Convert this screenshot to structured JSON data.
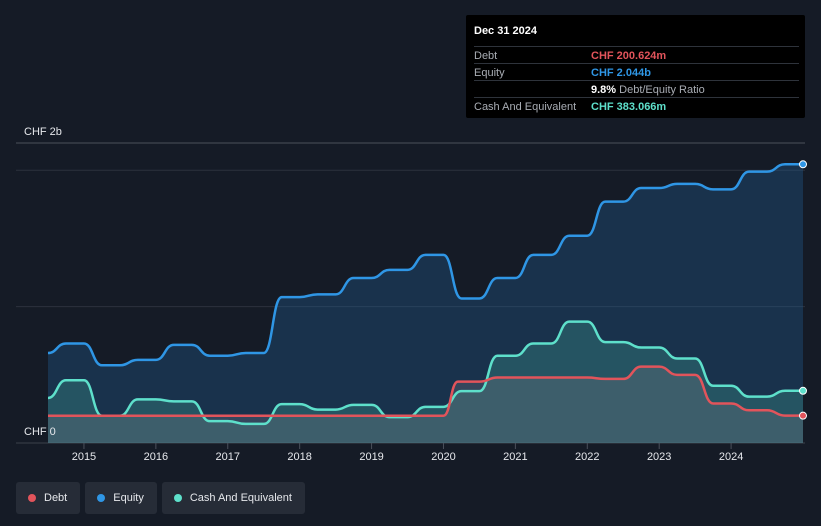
{
  "tooltip": {
    "date": "Dec 31 2024",
    "debt_label": "Debt",
    "debt_value": "CHF 200.624m",
    "equity_label": "Equity",
    "equity_value": "CHF 2.044b",
    "ratio_value": "9.8%",
    "ratio_label": "Debt/Equity Ratio",
    "cash_label": "Cash And Equivalent",
    "cash_value": "CHF 383.066m"
  },
  "legend": [
    {
      "name": "Debt",
      "color": "#e2545b"
    },
    {
      "name": "Equity",
      "color": "#2f96e5"
    },
    {
      "name": "Cash And Equivalent",
      "color": "#5ee0cb"
    }
  ],
  "colors": {
    "debt": "#e2545b",
    "equity": "#2f96e5",
    "cash": "#5ee0cb",
    "background": "#151b26"
  },
  "chart_data": {
    "type": "area",
    "title": "",
    "ylabel_top": "CHF 2b",
    "ylabel_bottom": "CHF 0",
    "y_unit": "CHF millions",
    "ylim": [
      0,
      2200
    ],
    "xlim": [
      2014.5,
      2025.0
    ],
    "x_ticks": [
      "2015",
      "2016",
      "2017",
      "2018",
      "2019",
      "2020",
      "2021",
      "2022",
      "2023",
      "2024"
    ],
    "series": [
      {
        "name": "Equity",
        "points": [
          [
            2014.5,
            660
          ],
          [
            2014.75,
            730
          ],
          [
            2015.0,
            730
          ],
          [
            2015.25,
            570
          ],
          [
            2015.5,
            570
          ],
          [
            2015.75,
            610
          ],
          [
            2016.0,
            610
          ],
          [
            2016.25,
            720
          ],
          [
            2016.5,
            720
          ],
          [
            2016.75,
            640
          ],
          [
            2017.0,
            640
          ],
          [
            2017.25,
            660
          ],
          [
            2017.5,
            660
          ],
          [
            2017.75,
            1070
          ],
          [
            2018.0,
            1070
          ],
          [
            2018.25,
            1090
          ],
          [
            2018.5,
            1090
          ],
          [
            2018.75,
            1210
          ],
          [
            2019.0,
            1210
          ],
          [
            2019.25,
            1270
          ],
          [
            2019.5,
            1270
          ],
          [
            2019.75,
            1380
          ],
          [
            2020.0,
            1380
          ],
          [
            2020.25,
            1060
          ],
          [
            2020.5,
            1060
          ],
          [
            2020.75,
            1210
          ],
          [
            2021.0,
            1210
          ],
          [
            2021.25,
            1380
          ],
          [
            2021.5,
            1380
          ],
          [
            2021.75,
            1520
          ],
          [
            2022.0,
            1520
          ],
          [
            2022.25,
            1770
          ],
          [
            2022.5,
            1770
          ],
          [
            2022.75,
            1870
          ],
          [
            2023.0,
            1870
          ],
          [
            2023.25,
            1900
          ],
          [
            2023.5,
            1900
          ],
          [
            2023.75,
            1860
          ],
          [
            2024.0,
            1860
          ],
          [
            2024.25,
            1990
          ],
          [
            2024.5,
            1990
          ],
          [
            2024.75,
            2044
          ],
          [
            2025.0,
            2044
          ]
        ]
      },
      {
        "name": "Cash And Equivalent",
        "points": [
          [
            2014.5,
            330
          ],
          [
            2014.75,
            460
          ],
          [
            2015.0,
            460
          ],
          [
            2015.25,
            200
          ],
          [
            2015.5,
            200
          ],
          [
            2015.75,
            320
          ],
          [
            2016.0,
            320
          ],
          [
            2016.25,
            305
          ],
          [
            2016.5,
            305
          ],
          [
            2016.75,
            160
          ],
          [
            2017.0,
            160
          ],
          [
            2017.25,
            140
          ],
          [
            2017.5,
            140
          ],
          [
            2017.75,
            285
          ],
          [
            2018.0,
            285
          ],
          [
            2018.25,
            245
          ],
          [
            2018.5,
            245
          ],
          [
            2018.75,
            280
          ],
          [
            2019.0,
            280
          ],
          [
            2019.25,
            190
          ],
          [
            2019.5,
            190
          ],
          [
            2019.75,
            265
          ],
          [
            2020.0,
            265
          ],
          [
            2020.25,
            380
          ],
          [
            2020.5,
            380
          ],
          [
            2020.75,
            640
          ],
          [
            2021.0,
            640
          ],
          [
            2021.25,
            730
          ],
          [
            2021.5,
            730
          ],
          [
            2021.75,
            890
          ],
          [
            2022.0,
            890
          ],
          [
            2022.25,
            740
          ],
          [
            2022.5,
            740
          ],
          [
            2022.75,
            700
          ],
          [
            2023.0,
            700
          ],
          [
            2023.25,
            620
          ],
          [
            2023.5,
            620
          ],
          [
            2023.75,
            420
          ],
          [
            2024.0,
            420
          ],
          [
            2024.25,
            340
          ],
          [
            2024.5,
            340
          ],
          [
            2024.75,
            383
          ],
          [
            2025.0,
            383
          ]
        ]
      },
      {
        "name": "Debt",
        "points": [
          [
            2014.5,
            200
          ],
          [
            2015.0,
            200
          ],
          [
            2016.0,
            200
          ],
          [
            2017.0,
            200
          ],
          [
            2018.0,
            200
          ],
          [
            2019.0,
            200
          ],
          [
            2020.0,
            200
          ],
          [
            2020.2,
            450
          ],
          [
            2020.5,
            450
          ],
          [
            2020.75,
            480
          ],
          [
            2021.0,
            480
          ],
          [
            2022.0,
            480
          ],
          [
            2022.25,
            470
          ],
          [
            2022.5,
            470
          ],
          [
            2022.75,
            560
          ],
          [
            2023.0,
            560
          ],
          [
            2023.25,
            500
          ],
          [
            2023.5,
            500
          ],
          [
            2023.75,
            290
          ],
          [
            2024.0,
            290
          ],
          [
            2024.25,
            240
          ],
          [
            2024.5,
            240
          ],
          [
            2024.75,
            200.624
          ],
          [
            2025.0,
            200.624
          ]
        ]
      }
    ],
    "legend_position": "bottom-left",
    "grid": true
  }
}
